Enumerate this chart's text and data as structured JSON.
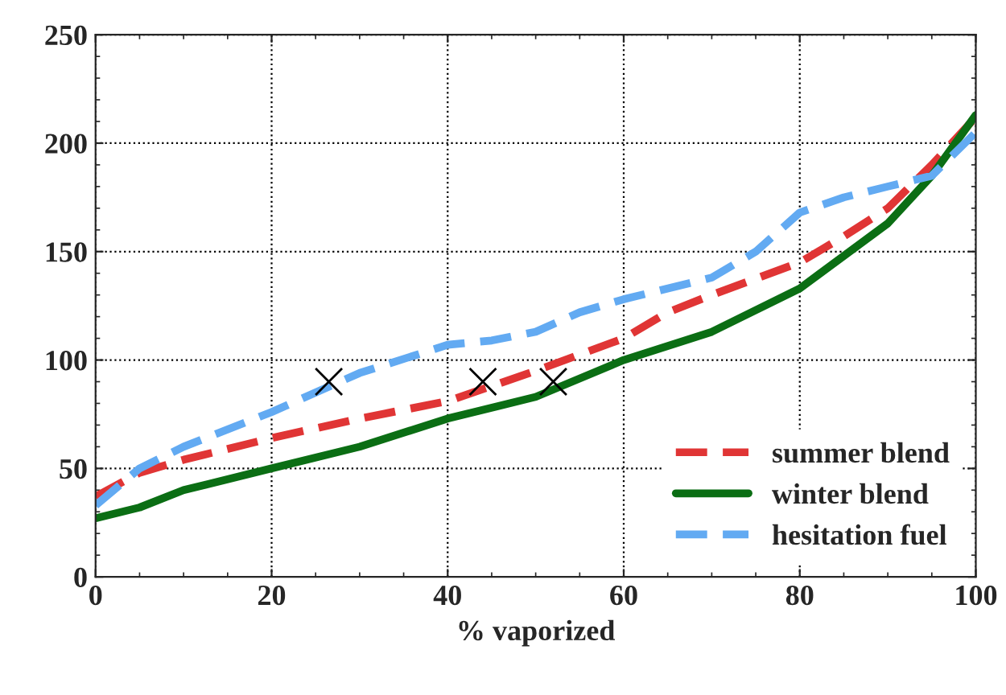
{
  "chart_data": {
    "type": "line",
    "xlabel": "% vaporized",
    "xlim": [
      0,
      100
    ],
    "ylim": [
      0,
      250
    ],
    "xticks": [
      0,
      20,
      40,
      60,
      80,
      100
    ],
    "yticks": [
      0,
      50,
      100,
      150,
      200,
      250
    ],
    "grid": true,
    "legend": "bottom right",
    "series": [
      {
        "name": "summer blend",
        "color": "#e03535",
        "line_style": "dashed",
        "x": [
          0,
          5,
          10,
          20,
          30,
          40,
          50,
          60,
          65,
          70,
          80,
          85,
          90,
          95,
          100
        ],
        "values": [
          37,
          48,
          54,
          64,
          73,
          81,
          95,
          110,
          122,
          130,
          145,
          157,
          170,
          190,
          212
        ]
      },
      {
        "name": "winter blend",
        "color": "#0b6e14",
        "line_style": "solid",
        "x": [
          0,
          5,
          10,
          20,
          30,
          40,
          50,
          60,
          70,
          80,
          90,
          95,
          100
        ],
        "values": [
          27,
          32,
          40,
          50,
          60,
          73,
          83,
          100,
          113,
          133,
          163,
          185,
          213
        ]
      },
      {
        "name": "hesitation fuel",
        "color": "#62aaf2",
        "line_style": "dashed",
        "x": [
          0,
          5,
          10,
          20,
          30,
          40,
          45,
          50,
          55,
          60,
          70,
          75,
          80,
          85,
          90,
          95,
          100
        ],
        "values": [
          33,
          50,
          60,
          76,
          94,
          107,
          109,
          113,
          122,
          128,
          138,
          150,
          168,
          175,
          180,
          185,
          205
        ]
      },
      {
        "type": "scatter",
        "marker": "cross",
        "color": "#000000",
        "x": [
          26.5,
          44,
          52
        ],
        "values": [
          90,
          90,
          90
        ]
      }
    ]
  }
}
